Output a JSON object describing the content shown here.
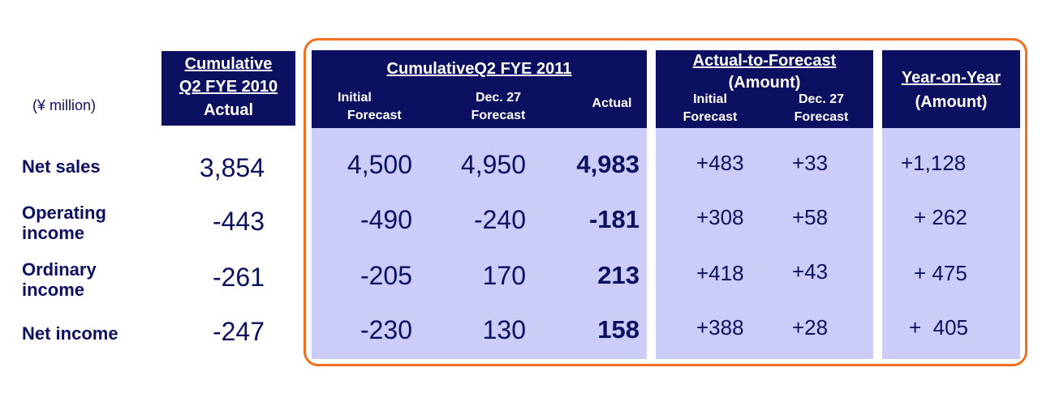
{
  "unit_label": "(¥ million)",
  "accent_color": "#f07020",
  "header_color": "#0b1160",
  "panel_color": "#ccccf8",
  "col_prev": {
    "line1": "Cumulative",
    "line2": "Q2 FYE 2010",
    "line3": "Actual"
  },
  "col_fy2011": {
    "title": "CumulativeQ2 FYE 2011",
    "initial_line1": "Initial",
    "initial_line2": "Forecast",
    "dec_line1": "Dec. 27",
    "dec_line2": "Forecast",
    "actual": "Actual"
  },
  "col_a2f": {
    "title": "Actual-to-Forecast",
    "subtitle": "(Amount)",
    "initial_line1": "Initial",
    "initial_line2": "Forecast",
    "dec_line1": "Dec. 27",
    "dec_line2": "Forecast"
  },
  "col_yoy": {
    "title": "Year-on-Year",
    "subtitle": "(Amount)"
  },
  "rows": [
    {
      "label1": "Net sales",
      "label2": "",
      "prev": "3,854",
      "initial": "4,500",
      "dec": "4,950",
      "actual": "4,983",
      "a2f_initial": "+483",
      "a2f_dec": "+33",
      "yoy": "+1,128"
    },
    {
      "label1": "Operating",
      "label2": "income",
      "prev": "-443",
      "initial": "-490",
      "dec": "-240",
      "actual": "-181",
      "a2f_initial": "+308",
      "a2f_dec": "+58",
      "yoy": "+ 262"
    },
    {
      "label1": "Ordinary",
      "label2": "income",
      "prev": "-261",
      "initial": "-205",
      "dec": "170",
      "actual": "213",
      "a2f_initial": "+418",
      "a2f_dec": "+43",
      "yoy": "+ 475"
    },
    {
      "label1": "Net income",
      "label2": "",
      "prev": "-247",
      "initial": "-230",
      "dec": "130",
      "actual": "158",
      "a2f_initial": "+388",
      "a2f_dec": "+28",
      "yoy": "+  405"
    }
  ]
}
